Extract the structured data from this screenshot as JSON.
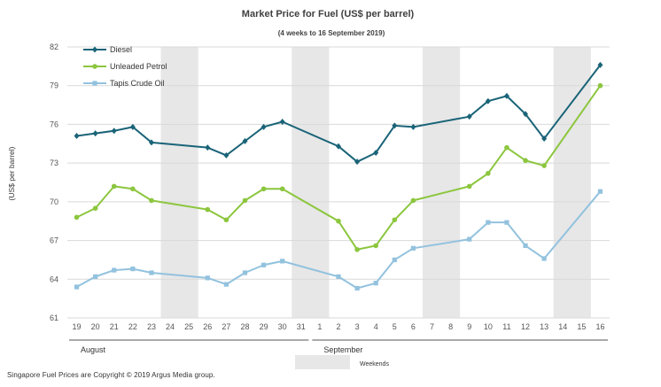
{
  "chart_data": {
    "type": "line",
    "title": "Market Price for Fuel (US$ per barrel)",
    "subtitle": "(4 weeks to 16 September 2019)",
    "ylabel": "(US$ per barrel)",
    "xlabel": "",
    "ylim": [
      61,
      82
    ],
    "yticks": [
      61,
      64,
      67,
      70,
      73,
      76,
      79,
      82
    ],
    "grid": true,
    "legend_position": "top-left",
    "categories": [
      "19",
      "20",
      "21",
      "22",
      "23",
      "24",
      "25",
      "26",
      "27",
      "28",
      "29",
      "30",
      "31",
      "1",
      "2",
      "3",
      "4",
      "5",
      "6",
      "7",
      "8",
      "9",
      "10",
      "11",
      "12",
      "13",
      "14",
      "15",
      "16"
    ],
    "month_groups": [
      {
        "label": "August",
        "from_index": 0,
        "to_index": 12
      },
      {
        "label": "September",
        "from_index": 13,
        "to_index": 28
      }
    ],
    "weekend_bands": [
      [
        5,
        6
      ],
      [
        12,
        13
      ],
      [
        19,
        20
      ],
      [
        26,
        27
      ]
    ],
    "weekend_label": "Weekends",
    "series": [
      {
        "name": "Diesel",
        "color": "#1a6478",
        "marker": "diamond",
        "values": [
          75.1,
          75.3,
          75.5,
          75.8,
          74.6,
          null,
          null,
          74.2,
          73.6,
          74.7,
          75.8,
          76.2,
          null,
          null,
          74.3,
          73.1,
          73.8,
          75.9,
          75.8,
          null,
          null,
          76.6,
          77.8,
          78.2,
          76.8,
          74.9,
          null,
          null,
          80.6
        ]
      },
      {
        "name": "Unleaded Petrol",
        "color": "#8cc63e",
        "marker": "circle",
        "values": [
          68.8,
          69.5,
          71.2,
          71.0,
          70.1,
          null,
          null,
          69.4,
          68.6,
          70.1,
          71.0,
          71.0,
          null,
          null,
          68.5,
          66.3,
          66.6,
          68.6,
          70.1,
          null,
          null,
          71.2,
          72.2,
          74.2,
          73.2,
          72.8,
          null,
          null,
          79.0
        ]
      },
      {
        "name": "Tapis Crude Oil",
        "color": "#92c2de",
        "marker": "square",
        "values": [
          63.4,
          64.2,
          64.7,
          64.8,
          64.5,
          null,
          null,
          64.1,
          63.6,
          64.5,
          65.1,
          65.4,
          null,
          null,
          64.2,
          63.3,
          63.7,
          65.5,
          66.4,
          null,
          null,
          67.1,
          68.4,
          68.4,
          66.6,
          65.6,
          null,
          null,
          70.8
        ]
      }
    ]
  },
  "footer": {
    "copyright": "Singapore  Fuel Prices  are Copyright  © 2019  Argus  Media group."
  }
}
